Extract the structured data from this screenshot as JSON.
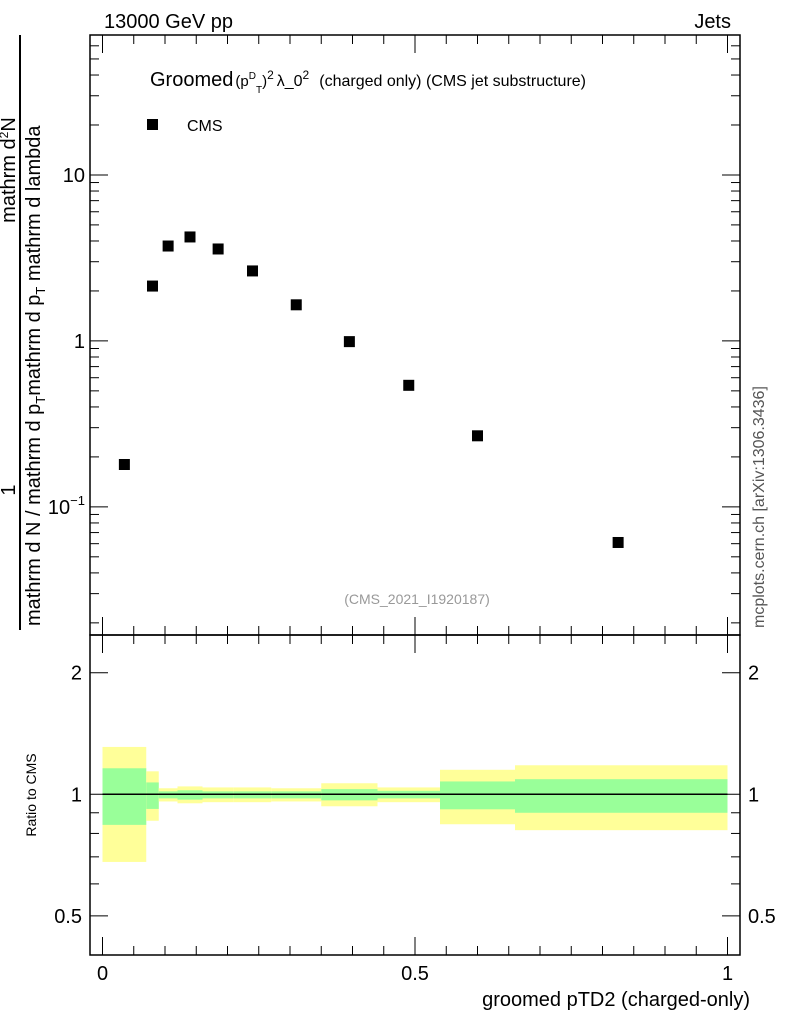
{
  "header": {
    "energy_label": "13000 GeV pp",
    "process_label": "Jets"
  },
  "side_label": "mcplots.cern.ch [arXiv:1306.3436]",
  "analysis_id": "(CMS_2021_I1920187)",
  "colors": {
    "marker": "#000000",
    "band_outer": "#ffff99",
    "band_inner": "#99ff99",
    "ratio_line": "#000000"
  },
  "y_label": {
    "num1": "1",
    "den1": "mathrm d N / mathrm d p",
    "den1_sub": "T",
    "num2": "mathrm d",
    "num2_sup": "2",
    "num2_end": "N",
    "den2a": "mathrm d p",
    "den2a_sub": "T",
    "den2b": " mathrm d lambda"
  },
  "chart_data": [
    {
      "type": "scatter",
      "title_parts": {
        "pre": "Groomed",
        "p": "(p",
        "p_sup": "D",
        "p_sub": "T",
        "close": ")",
        "sq": "2",
        "lambda": "λ_0",
        "lambda_sup": "2",
        "post": "(charged only) (CMS jet substructure)"
      },
      "legend": [
        {
          "name": "CMS",
          "position": "top-left"
        }
      ],
      "x": [
        0.035,
        0.08,
        0.105,
        0.14,
        0.185,
        0.24,
        0.31,
        0.395,
        0.49,
        0.6,
        0.825
      ],
      "y": [
        0.18,
        2.14,
        3.73,
        4.23,
        3.58,
        2.64,
        1.65,
        0.99,
        0.54,
        0.268,
        0.061
      ],
      "xlim": [
        -0.02,
        1.02
      ],
      "ylim": [
        0.0169,
        69.7
      ],
      "yscale": "log",
      "yticks": [
        {
          "value": 0.1,
          "label": "10",
          "sup": "−1"
        },
        {
          "value": 1,
          "label": "1"
        },
        {
          "value": 10,
          "label": "10"
        }
      ]
    },
    {
      "type": "area",
      "ylabel": "Ratio to CMS",
      "xlabel": "groomed pTD2 (charged-only)",
      "yscale": "log",
      "ylim": [
        0.4,
        2.48
      ],
      "xticks": [
        {
          "value": 0,
          "label": "0"
        },
        {
          "value": 0.5,
          "label": "0.5"
        },
        {
          "value": 1,
          "label": "1"
        }
      ],
      "yticks": [
        {
          "value": 0.5,
          "label": "0.5"
        },
        {
          "value": 1,
          "label": "1"
        },
        {
          "value": 2,
          "label": "2"
        }
      ],
      "bin_edges": [
        0,
        0.07,
        0.09,
        0.12,
        0.16,
        0.21,
        0.27,
        0.35,
        0.44,
        0.54,
        0.66,
        1.0
      ],
      "outer_hi": [
        1.31,
        1.14,
        1.035,
        1.046,
        1.04,
        1.04,
        1.035,
        1.065,
        1.04,
        1.15,
        1.18
      ],
      "inner_hi": [
        1.16,
        1.07,
        1.017,
        1.023,
        1.017,
        1.017,
        1.017,
        1.03,
        1.02,
        1.076,
        1.09
      ],
      "inner_lo": [
        0.84,
        0.92,
        0.977,
        0.97,
        0.977,
        0.977,
        0.977,
        0.966,
        0.977,
        0.918,
        0.9
      ],
      "outer_lo": [
        0.68,
        0.86,
        0.96,
        0.95,
        0.956,
        0.956,
        0.96,
        0.934,
        0.956,
        0.843,
        0.815
      ],
      "reference": 1
    }
  ]
}
